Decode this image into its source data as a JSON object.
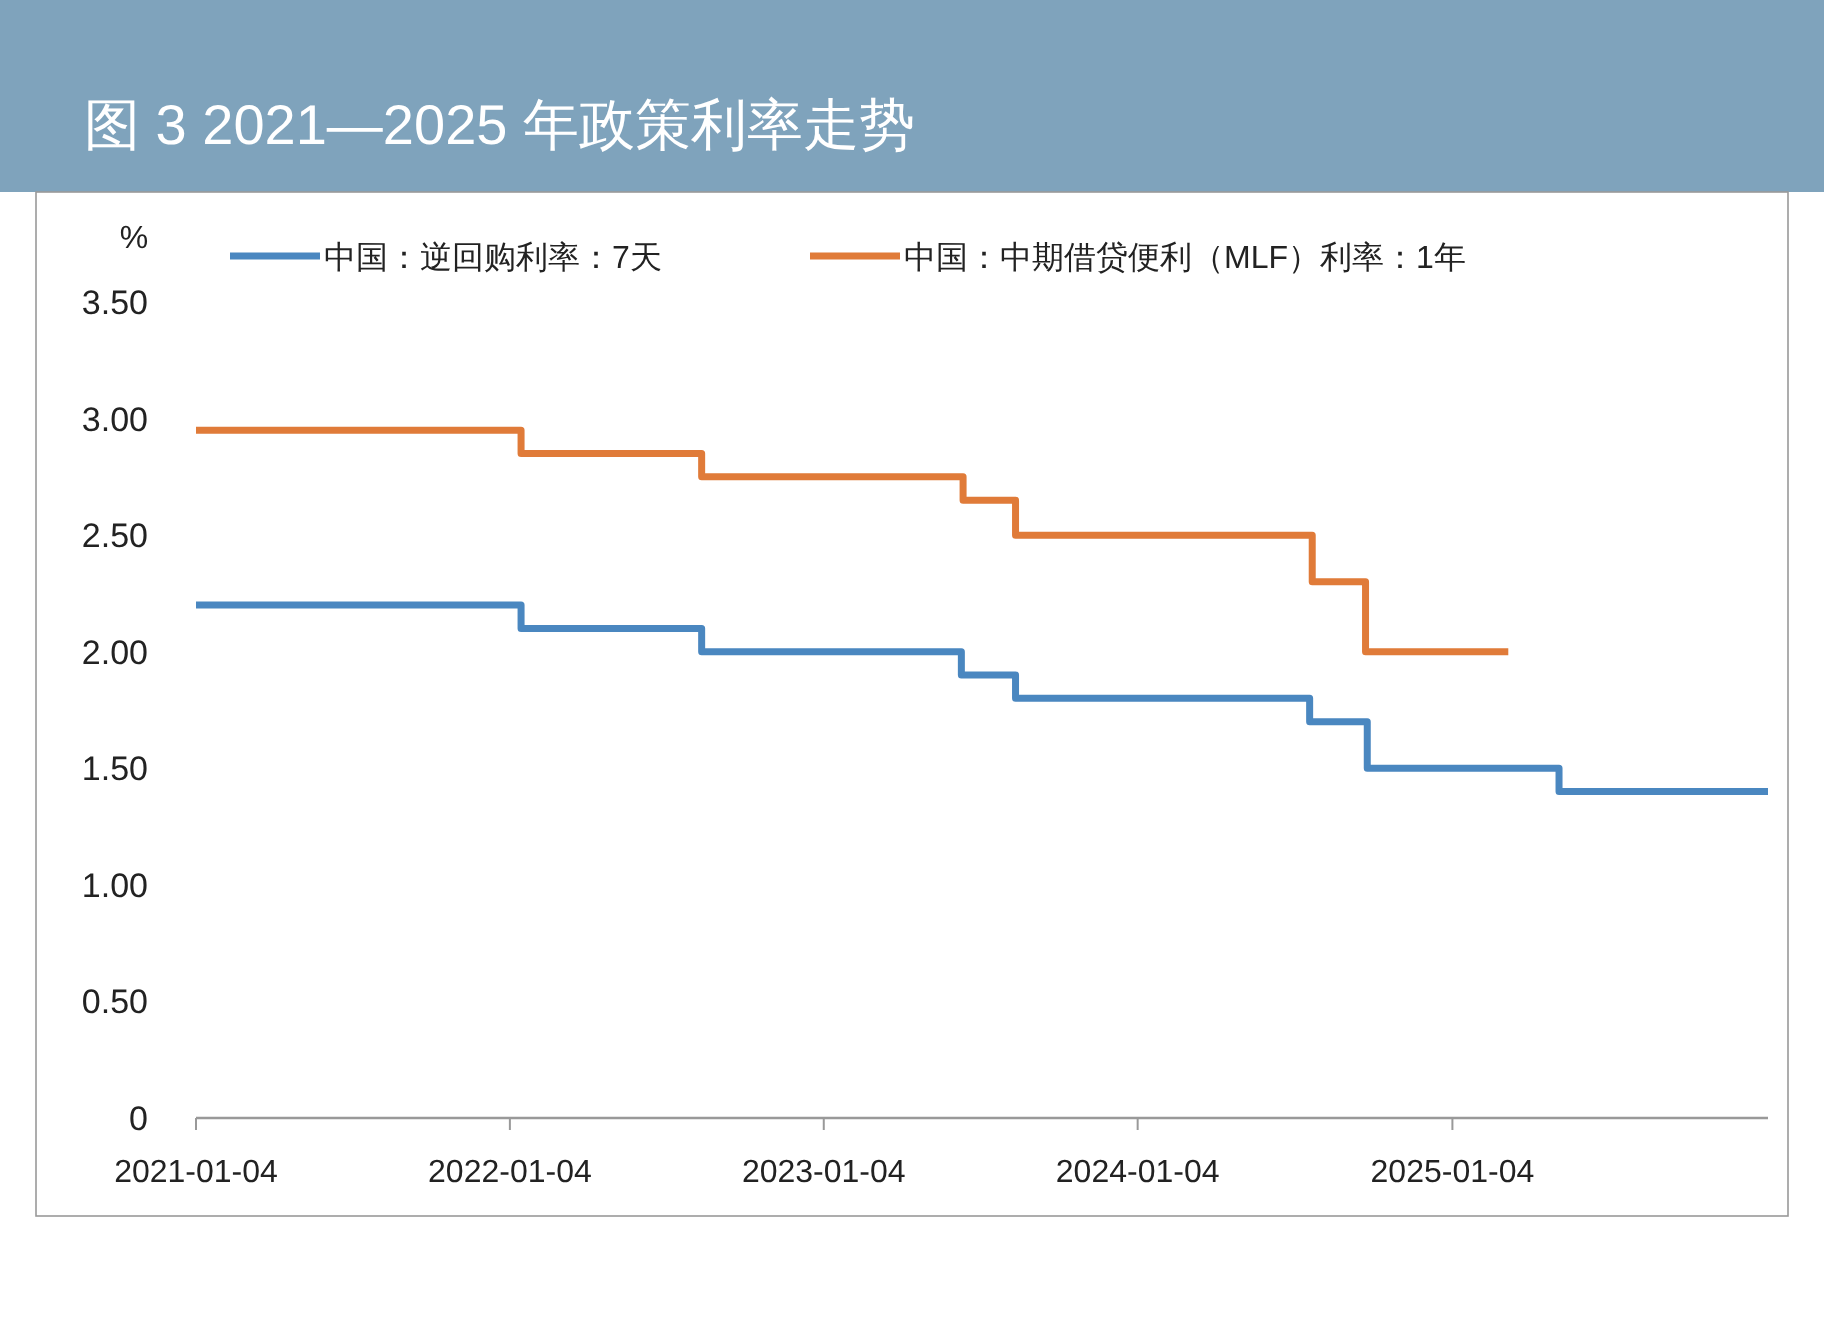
{
  "chart_data": {
    "type": "step",
    "title": "图 3   2021—2025 年政策利率走势",
    "ylabel": "%",
    "xlim": [
      "2021-01-04",
      "2026-01-06"
    ],
    "xticks": [
      "2021-01-04",
      "2022-01-04",
      "2023-01-04",
      "2024-01-04",
      "2025-01-04"
    ],
    "ylim": [
      0,
      3.5
    ],
    "yticks": [
      0,
      {
        "value": 0.5,
        "label": "0.50"
      },
      {
        "value": 1,
        "label": "1.00"
      },
      {
        "value": 1.5,
        "label": "1.50"
      },
      {
        "value": 2,
        "label": "2.00"
      },
      {
        "value": 2.5,
        "label": "2.50"
      },
      {
        "value": 3,
        "label": "3.00"
      },
      {
        "value": 3.5,
        "label": "3.50"
      }
    ],
    "grid": false,
    "legend": "top left",
    "line_style": "solid",
    "marker": "none",
    "series": [
      {
        "name": "中国：逆回购利率：7天",
        "color": "#4a87c0",
        "x": [
          "2021-01-04",
          "2022-01-17",
          "2022-08-15",
          "2023-06-13",
          "2023-08-15",
          "2024-07-22",
          "2024-09-27",
          "2025-05-08",
          "2026-01-06"
        ],
        "values": [
          2.2,
          2.1,
          2.0,
          1.9,
          1.8,
          1.7,
          1.5,
          1.4,
          1.4
        ]
      },
      {
        "name": "中国：中期借贷便利（MLF）利率：1年",
        "color": "#e07b39",
        "x": [
          "2021-01-04",
          "2022-01-17",
          "2022-08-15",
          "2023-06-15",
          "2023-08-15",
          "2024-07-25",
          "2024-09-25",
          "2025-03-10"
        ],
        "values": [
          2.95,
          2.85,
          2.75,
          2.65,
          2.5,
          2.3,
          2.0,
          2.0
        ]
      }
    ]
  }
}
